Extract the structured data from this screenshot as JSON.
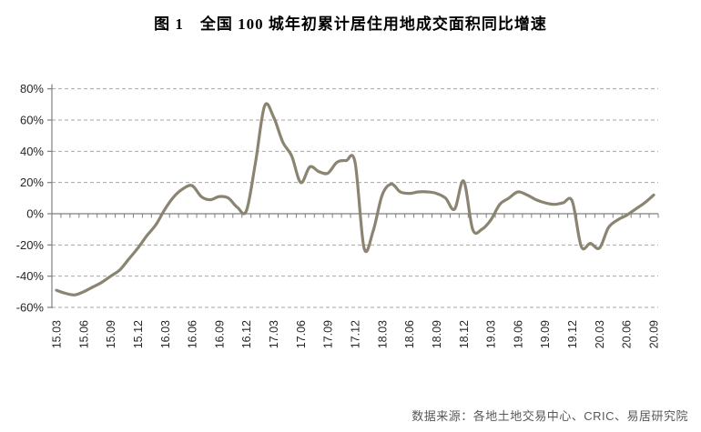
{
  "title": "图 1　全国 100 城年初累计居住用地成交面积同比增速",
  "source_note": "数据来源：各地土地交易中心、CRIC、易居研究院",
  "colors": {
    "line": "#8b8470",
    "grid": "#a6a6a6",
    "axis": "#7f7f7f",
    "tick_label": "#262626",
    "background": "#ffffff"
  },
  "chart_data": {
    "type": "line",
    "title": "图 1　全国 100 城年初累计居住用地成交面积同比增速",
    "xlabel": "",
    "ylabel": "",
    "ylim": [
      -60,
      80
    ],
    "y_tick_labels": [
      "80%",
      "60%",
      "40%",
      "20%",
      "0%",
      "-20%",
      "-40%",
      "-60%"
    ],
    "y_tick_values": [
      80,
      60,
      40,
      20,
      0,
      -20,
      -40,
      -60
    ],
    "grid": "horizontal-dashed",
    "legend_position": "none",
    "x_axis_tick_labels": [
      "15.03",
      "15.06",
      "15.09",
      "15.12",
      "16.03",
      "16.06",
      "16.09",
      "16.12",
      "17.03",
      "17.06",
      "17.09",
      "17.12",
      "18.03",
      "18.06",
      "18.09",
      "18.12",
      "19.03",
      "19.06",
      "19.09",
      "19.12",
      "20.03",
      "20.06",
      "20.09"
    ],
    "x_label_every_n_months": 3,
    "x": [
      "15.03",
      "15.04",
      "15.05",
      "15.06",
      "15.07",
      "15.08",
      "15.09",
      "15.10",
      "15.11",
      "15.12",
      "16.01",
      "16.02",
      "16.03",
      "16.04",
      "16.05",
      "16.06",
      "16.07",
      "16.08",
      "16.09",
      "16.10",
      "16.11",
      "16.12",
      "17.01",
      "17.02",
      "17.03",
      "17.04",
      "17.05",
      "17.06",
      "17.07",
      "17.08",
      "17.09",
      "17.10",
      "17.11",
      "17.12",
      "18.01",
      "18.02",
      "18.03",
      "18.04",
      "18.05",
      "18.06",
      "18.07",
      "18.08",
      "18.09",
      "18.10",
      "18.11",
      "18.12",
      "19.01",
      "19.02",
      "19.03",
      "19.04",
      "19.05",
      "19.06",
      "19.07",
      "19.08",
      "19.09",
      "19.10",
      "19.11",
      "19.12",
      "20.01",
      "20.02",
      "20.03",
      "20.04",
      "20.05",
      "20.06",
      "20.07",
      "20.08",
      "20.09"
    ],
    "series": [
      {
        "name": "全国100城年初累计居住用地成交面积同比增速(%)",
        "values": [
          -49,
          -51,
          -52,
          -50,
          -47,
          -44,
          -40,
          -36,
          -29,
          -22,
          -14,
          -7,
          3,
          11,
          16,
          18,
          11,
          9,
          11,
          10,
          4,
          2,
          33,
          69,
          62,
          46,
          37,
          20,
          30,
          27,
          26,
          33,
          34,
          33,
          -22,
          -11,
          12,
          19,
          14,
          13,
          14,
          14,
          13,
          10,
          3,
          21,
          -10,
          -10,
          -4,
          6,
          10,
          14,
          12,
          9,
          7,
          6,
          7,
          8,
          -21,
          -19,
          -22,
          -9,
          -4,
          -1,
          3,
          7,
          12
        ]
      }
    ]
  }
}
